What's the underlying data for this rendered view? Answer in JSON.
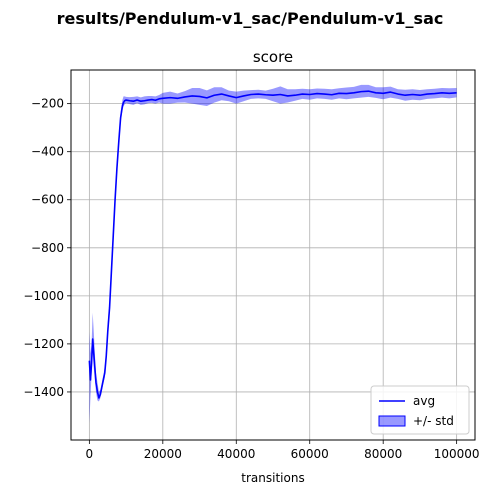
{
  "figure": {
    "suptitle": "results/Pendulum-v1_sac/Pendulum-v1_sac"
  },
  "chart_data": {
    "type": "line",
    "title": "score",
    "xlabel": "transitions",
    "ylabel": "",
    "xlim": [
      -5000,
      105000
    ],
    "ylim": [
      -1600,
      -60
    ],
    "xticks": [
      0,
      20000,
      40000,
      60000,
      80000,
      100000
    ],
    "yticks": [
      -1400,
      -1200,
      -1000,
      -800,
      -600,
      -400,
      -200
    ],
    "grid": true,
    "legend": {
      "placement": "lower-right",
      "entries": [
        {
          "label": "avg",
          "kind": "line",
          "color": "#0000ff"
        },
        {
          "label": "+/- std",
          "kind": "patch",
          "color": "#0000ff"
        }
      ]
    },
    "colors": {
      "line": "#0000ff",
      "band": "#0000ff",
      "grid": "#b0b0b0"
    },
    "series": [
      {
        "name": "avg",
        "x": [
          0,
          300,
          600,
          900,
          1200,
          1500,
          1800,
          2200,
          2600,
          3000,
          3400,
          3800,
          4200,
          4600,
          5000,
          5500,
          6000,
          6500,
          7000,
          7500,
          8000,
          8500,
          9000,
          9300,
          9600,
          10000,
          11000,
          12000,
          13000,
          14000,
          15000,
          16000,
          17000,
          18000,
          19000,
          20000,
          22000,
          24000,
          26000,
          28000,
          30000,
          32000,
          34000,
          36000,
          38000,
          40000,
          42000,
          44000,
          46000,
          48000,
          50000,
          52000,
          54000,
          56000,
          58000,
          60000,
          62000,
          64000,
          66000,
          68000,
          70000,
          72000,
          74000,
          76000,
          78000,
          80000,
          82000,
          84000,
          86000,
          88000,
          90000,
          92000,
          94000,
          96000,
          98000,
          100000
        ],
        "y": [
          -1270,
          -1350,
          -1280,
          -1180,
          -1240,
          -1300,
          -1360,
          -1400,
          -1425,
          -1410,
          -1380,
          -1350,
          -1320,
          -1250,
          -1150,
          -1050,
          -900,
          -750,
          -600,
          -470,
          -360,
          -260,
          -210,
          -195,
          -188,
          -185,
          -188,
          -190,
          -185,
          -190,
          -188,
          -185,
          -183,
          -186,
          -180,
          -178,
          -175,
          -178,
          -172,
          -168,
          -170,
          -176,
          -165,
          -160,
          -168,
          -175,
          -168,
          -162,
          -160,
          -163,
          -165,
          -162,
          -168,
          -165,
          -160,
          -162,
          -158,
          -160,
          -163,
          -157,
          -158,
          -155,
          -150,
          -148,
          -155,
          -157,
          -152,
          -160,
          -165,
          -162,
          -165,
          -160,
          -158,
          -155,
          -157,
          -155
        ]
      },
      {
        "name": "+/- std",
        "x": [
          0,
          300,
          600,
          900,
          1200,
          1500,
          1800,
          2200,
          2600,
          3000,
          3400,
          3800,
          4200,
          4600,
          5000,
          5500,
          6000,
          6500,
          7000,
          7500,
          8000,
          8500,
          9000,
          9300,
          9600,
          10000,
          11000,
          12000,
          13000,
          14000,
          15000,
          16000,
          17000,
          18000,
          19000,
          20000,
          22000,
          24000,
          26000,
          28000,
          30000,
          32000,
          34000,
          36000,
          38000,
          40000,
          42000,
          44000,
          46000,
          48000,
          50000,
          52000,
          54000,
          56000,
          58000,
          60000,
          62000,
          64000,
          66000,
          68000,
          70000,
          72000,
          74000,
          76000,
          78000,
          80000,
          82000,
          84000,
          86000,
          88000,
          90000,
          92000,
          94000,
          96000,
          98000,
          100000
        ],
        "lower": [
          -1530,
          -1420,
          -1330,
          -1240,
          -1300,
          -1350,
          -1400,
          -1435,
          -1440,
          -1425,
          -1395,
          -1365,
          -1340,
          -1275,
          -1180,
          -1080,
          -930,
          -780,
          -630,
          -500,
          -385,
          -280,
          -228,
          -212,
          -203,
          -198,
          -202,
          -205,
          -198,
          -205,
          -203,
          -198,
          -197,
          -200,
          -195,
          -200,
          -200,
          -196,
          -195,
          -200,
          -205,
          -210,
          -196,
          -186,
          -190,
          -200,
          -190,
          -180,
          -178,
          -180,
          -190,
          -200,
          -195,
          -188,
          -180,
          -184,
          -178,
          -180,
          -184,
          -178,
          -182,
          -178,
          -175,
          -172,
          -176,
          -182,
          -175,
          -180,
          -188,
          -184,
          -186,
          -180,
          -178,
          -175,
          -178,
          -174
        ],
        "upper": [
          -1150,
          -1240,
          -1200,
          -1070,
          -1150,
          -1240,
          -1320,
          -1360,
          -1400,
          -1390,
          -1360,
          -1330,
          -1295,
          -1220,
          -1115,
          -1020,
          -865,
          -715,
          -565,
          -435,
          -330,
          -235,
          -185,
          -170,
          -170,
          -172,
          -173,
          -172,
          -170,
          -174,
          -170,
          -168,
          -168,
          -170,
          -164,
          -155,
          -150,
          -158,
          -148,
          -135,
          -135,
          -145,
          -132,
          -132,
          -146,
          -150,
          -146,
          -144,
          -142,
          -146,
          -138,
          -128,
          -140,
          -140,
          -138,
          -140,
          -137,
          -138,
          -140,
          -136,
          -133,
          -130,
          -122,
          -122,
          -132,
          -132,
          -129,
          -140,
          -142,
          -140,
          -143,
          -140,
          -138,
          -135,
          -136,
          -135
        ]
      }
    ]
  }
}
